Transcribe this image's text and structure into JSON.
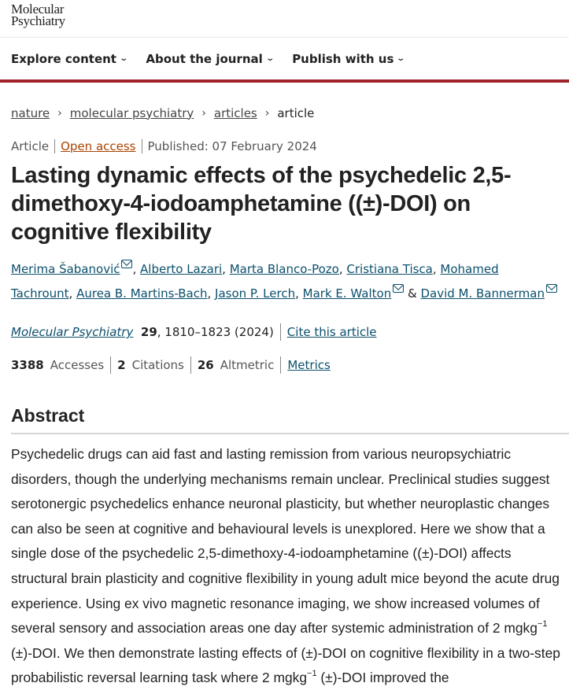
{
  "logo": {
    "line1": "Molecular",
    "line2": "Psychiatry"
  },
  "nav": [
    {
      "label": "Explore content"
    },
    {
      "label": "About the journal"
    },
    {
      "label": "Publish with us"
    }
  ],
  "breadcrumb": [
    {
      "label": "nature"
    },
    {
      "label": "molecular psychiatry"
    },
    {
      "label": "articles"
    },
    {
      "label": "article"
    }
  ],
  "meta": {
    "type": "Article",
    "access": "Open access",
    "published": "Published: 07 February 2024"
  },
  "title": "Lasting dynamic effects of the psychedelic 2,5-dimethoxy-4-iodoamphetamine ((±)-DOI) on cognitive flexibility",
  "authors": [
    {
      "name": "Merima Šabanović",
      "email": true
    },
    {
      "name": "Alberto Lazari"
    },
    {
      "name": "Marta Blanco-Pozo"
    },
    {
      "name": "Cristiana Tisca"
    },
    {
      "name": "Mohamed Tachrount"
    },
    {
      "name": "Aurea B. Martins-Bach"
    },
    {
      "name": "Jason P. Lerch"
    },
    {
      "name": "Mark E. Walton",
      "email": true
    },
    {
      "name": "David M. Bannerman",
      "email": true
    }
  ],
  "citation": {
    "journal": "Molecular Psychiatry",
    "volume": "29",
    "pages": ", 1810–1823 (2024)",
    "cite_label": "Cite this article"
  },
  "metrics": {
    "accesses": "3388",
    "accesses_label": "Accesses",
    "citations": "2",
    "citations_label": "Citations",
    "altmetric": "26",
    "altmetric_label": "Altmetric",
    "metrics_link": "Metrics"
  },
  "abstract": {
    "heading": "Abstract",
    "p1": "Psychedelic drugs can aid fast and lasting remission from various neuropsychiatric disorders, though the underlying mechanisms remain unclear. Preclinical studies suggest serotonergic psychedelics enhance neuronal plasticity, but whether neuroplastic changes can also be seen at cognitive and behavioural levels is unexplored. Here we show that a single dose of the psychedelic 2,5-dimethoxy-4-iodoamphetamine ((±)-DOI) affects structural brain plasticity and cognitive flexibility in young adult mice beyond the acute drug experience. Using ex vivo magnetic resonance imaging, we show increased volumes of several sensory and association areas one day after systemic administration of 2 mgkg",
    "sup1": "−1",
    "p2": " (±)-DOI. We then demonstrate lasting effects of (±)-DOI on cognitive flexibility in a two-step probabilistic reversal learning task where 2 mgkg",
    "sup2": "−1",
    "p3": " (±)-DOI improved the"
  }
}
